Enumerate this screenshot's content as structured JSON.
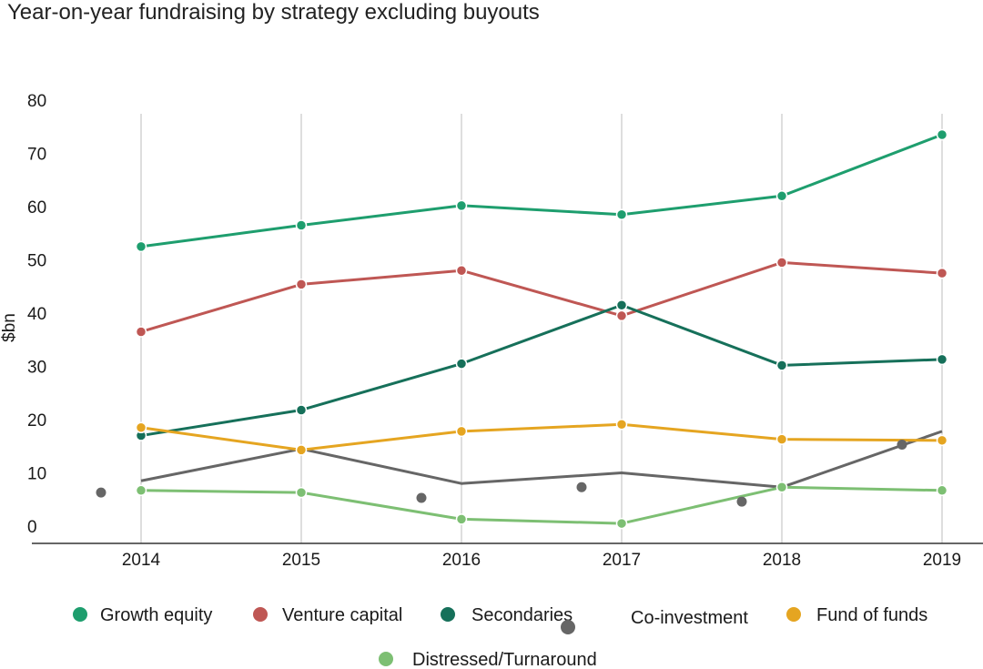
{
  "chart_data": {
    "type": "line",
    "title": "Year-on-year fundraising by strategy excluding buyouts",
    "xlabel": "",
    "ylabel": "$bn",
    "categories": [
      "2014",
      "2015",
      "2016",
      "2017",
      "2018",
      "2019"
    ],
    "ylim": [
      0,
      80
    ],
    "yticks": [
      0,
      10,
      20,
      30,
      40,
      50,
      60,
      70,
      80
    ],
    "grid": "vertical",
    "legend_position": "bottom",
    "series": [
      {
        "name": "Growth equity",
        "color": "#1e9e6e",
        "values": [
          52.5,
          56.5,
          60.2,
          58.5,
          62.0,
          73.5
        ],
        "markers": true
      },
      {
        "name": "Venture capital",
        "color": "#bf5754",
        "values": [
          36.5,
          45.4,
          48.0,
          39.5,
          49.5,
          47.5
        ],
        "markers": true
      },
      {
        "name": "Secondaries",
        "color": "#16705a",
        "values": [
          17.0,
          21.8,
          30.5,
          41.5,
          30.2,
          31.3
        ],
        "markers": true
      },
      {
        "name": "Co-investment",
        "color": "#666666",
        "values": [
          8.5,
          14.5,
          8.0,
          10.0,
          7.3,
          17.8
        ],
        "markers": false
      },
      {
        "name": "Fund of funds",
        "color": "#e5a521",
        "values": [
          18.5,
          14.3,
          17.8,
          19.1,
          16.3,
          16.1
        ],
        "markers": true
      },
      {
        "name": "Distressed/Turnaround",
        "color": "#7dbf73",
        "values": [
          6.7,
          6.3,
          1.3,
          0.5,
          7.3,
          6.7
        ],
        "markers": true
      }
    ],
    "co_investment_dots": [
      {
        "x": 2013.75,
        "y": 6.3
      },
      {
        "x": 2015.75,
        "y": 5.3
      },
      {
        "x": 2016.75,
        "y": 7.3
      },
      {
        "x": 2017.75,
        "y": 4.6
      },
      {
        "x": 2018.75,
        "y": 15.3
      }
    ]
  }
}
